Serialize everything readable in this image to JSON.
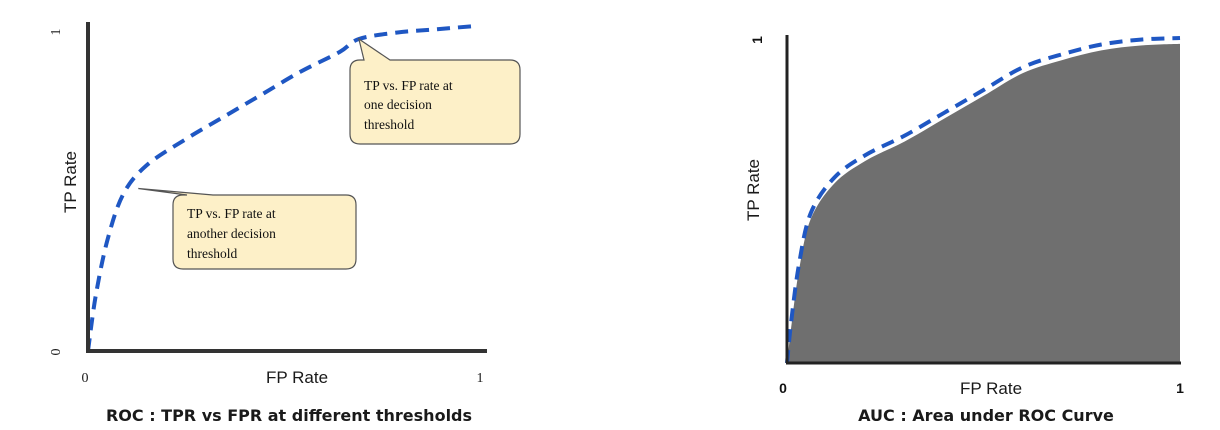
{
  "chart_data": [
    {
      "type": "line",
      "title": "ROC : TPR vs FPR at different thresholds",
      "xlabel": "FP Rate",
      "ylabel": "TP Rate",
      "xlim": [
        0,
        1
      ],
      "ylim": [
        0,
        1
      ],
      "x_ticks": [
        "0",
        "1"
      ],
      "y_ticks": [
        "0",
        "1"
      ],
      "grid": false,
      "line_style": "dashed",
      "line_color": "#1f57c3",
      "series": [
        {
          "x": [
            0,
            0.02,
            0.05,
            0.09,
            0.15,
            0.25,
            0.35,
            0.45,
            0.55,
            0.65,
            0.7,
            0.8,
            0.9,
            1.0
          ],
          "y": [
            0,
            0.17,
            0.34,
            0.48,
            0.57,
            0.65,
            0.72,
            0.79,
            0.86,
            0.92,
            0.96,
            0.98,
            0.99,
            1.0
          ]
        }
      ],
      "annotations": [
        {
          "lines": [
            "TP vs. FP rate at",
            "one decision",
            "threshold"
          ],
          "point": [
            0.7,
            0.96
          ]
        },
        {
          "lines": [
            "TP vs. FP rate at",
            "another decision",
            "threshold"
          ],
          "point": [
            0.13,
            0.5
          ]
        }
      ],
      "callout_fill": "#fdf0c8",
      "callout_stroke": "#555555"
    },
    {
      "type": "area",
      "title": "AUC : Area under ROC Curve",
      "xlabel": "FP Rate",
      "ylabel": "TP Rate",
      "xlim": [
        0,
        1
      ],
      "ylim": [
        0,
        1
      ],
      "x_ticks": [
        "0",
        "1"
      ],
      "y_ticks": [
        "1"
      ],
      "grid": false,
      "line_style": "dashed",
      "line_color": "#1f57c3",
      "fill_color": "#6f6f6f",
      "series": [
        {
          "x": [
            0,
            0.01,
            0.03,
            0.06,
            0.12,
            0.2,
            0.3,
            0.4,
            0.5,
            0.6,
            0.7,
            0.8,
            0.9,
            1.0
          ],
          "y": [
            0,
            0.12,
            0.3,
            0.46,
            0.57,
            0.64,
            0.7,
            0.77,
            0.84,
            0.91,
            0.95,
            0.98,
            0.995,
            1.0
          ]
        }
      ]
    }
  ]
}
